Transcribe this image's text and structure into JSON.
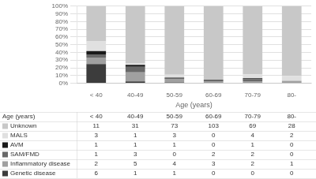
{
  "chart_data": {
    "type": "bar",
    "stacked": true,
    "xlabel": "Age (years)",
    "categories": [
      "< 40",
      "40-49",
      "50-59",
      "60-69",
      "70-79",
      "80-"
    ],
    "series": [
      {
        "name": "Genetic disease",
        "color": "#3c3c3c",
        "values": [
          25,
          2.38,
          1.22,
          0,
          0,
          0
        ],
        "counts": [
          6,
          1,
          1,
          0,
          0,
          0
        ]
      },
      {
        "name": "Inflammatory disease",
        "color": "#a0a0a0",
        "values": [
          8.33,
          11.9,
          4.88,
          2.78,
          2.56,
          3.23
        ],
        "counts": [
          2,
          5,
          4,
          3,
          2,
          1
        ]
      },
      {
        "name": "SAM/FMD",
        "color": "#686868",
        "values": [
          4.17,
          7.14,
          0,
          1.85,
          2.56,
          0
        ],
        "counts": [
          1,
          3,
          0,
          2,
          2,
          0
        ]
      },
      {
        "name": "AVM",
        "color": "#1a1a1a",
        "values": [
          4.17,
          2.38,
          1.22,
          0,
          1.28,
          0
        ],
        "counts": [
          1,
          1,
          1,
          0,
          1,
          0
        ]
      },
      {
        "name": "MALS",
        "color": "#e0e0e0",
        "values": [
          12.5,
          2.38,
          3.66,
          0,
          5.13,
          6.45
        ],
        "counts": [
          3,
          1,
          3,
          0,
          4,
          2
        ]
      },
      {
        "name": "Unknown",
        "color": "#c8c8c8",
        "values": [
          45.83,
          73.81,
          89.02,
          95.37,
          88.46,
          90.32
        ],
        "counts": [
          11,
          31,
          73,
          103,
          69,
          28
        ]
      }
    ],
    "ylim": [
      0,
      100
    ],
    "yticks": [
      {
        "value": 0,
        "label": "0%"
      },
      {
        "value": 10,
        "label": "10%"
      },
      {
        "value": 20,
        "label": "20%"
      },
      {
        "value": 30,
        "label": "30%"
      },
      {
        "value": 40,
        "label": "40%"
      },
      {
        "value": 50,
        "label": "50%"
      },
      {
        "value": 60,
        "label": "60%"
      },
      {
        "value": 70,
        "label": "70%"
      },
      {
        "value": 80,
        "label": "80%"
      },
      {
        "value": 90,
        "label": "90%"
      },
      {
        "value": 100,
        "label": "100%"
      }
    ],
    "grid": true
  }
}
